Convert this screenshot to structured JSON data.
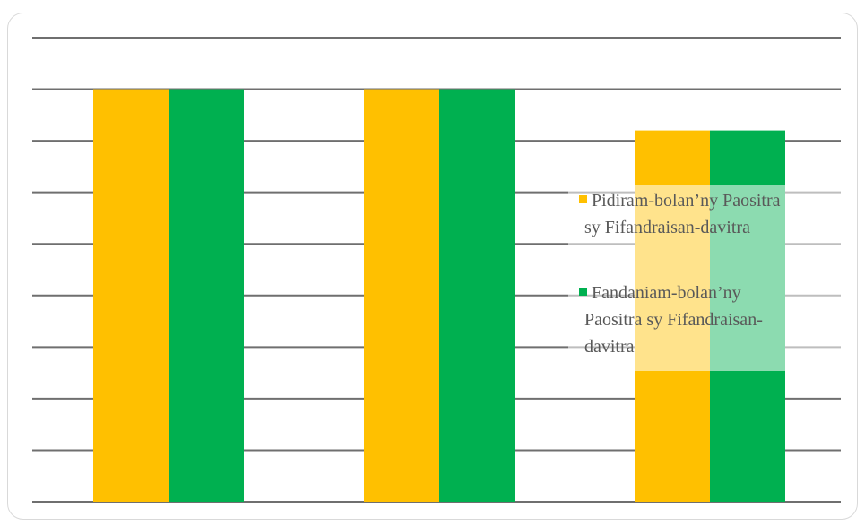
{
  "colors": {
    "series_1": "#FFC000",
    "series_2": "#00B050",
    "grid": "#6F6F6F",
    "legend_text": "#595959"
  },
  "chart_data": {
    "type": "bar",
    "categories": [
      "",
      "",
      ""
    ],
    "series": [
      {
        "name": "Pidiram-bolan’ny Paositra sy Fifandraisan-davitra",
        "legend_lines": [
          "Pidiram-bolan’ny Paositra",
          "sy Fifandraisan-davitra"
        ],
        "values": [
          8,
          8,
          7.2
        ],
        "color": "#FFC000"
      },
      {
        "name": "Fandaniam-bolan’ny Paositra sy Fifandraisan-davitra",
        "legend_lines": [
          "Fandaniam-bolan’ny",
          "Paositra sy Fifandraisan-",
          "davitra"
        ],
        "values": [
          8,
          8,
          7.2
        ],
        "color": "#00B050"
      }
    ],
    "title": "",
    "xlabel": "",
    "ylabel": "",
    "ylim": [
      0,
      9
    ],
    "grid": true,
    "legend_position": "right"
  }
}
